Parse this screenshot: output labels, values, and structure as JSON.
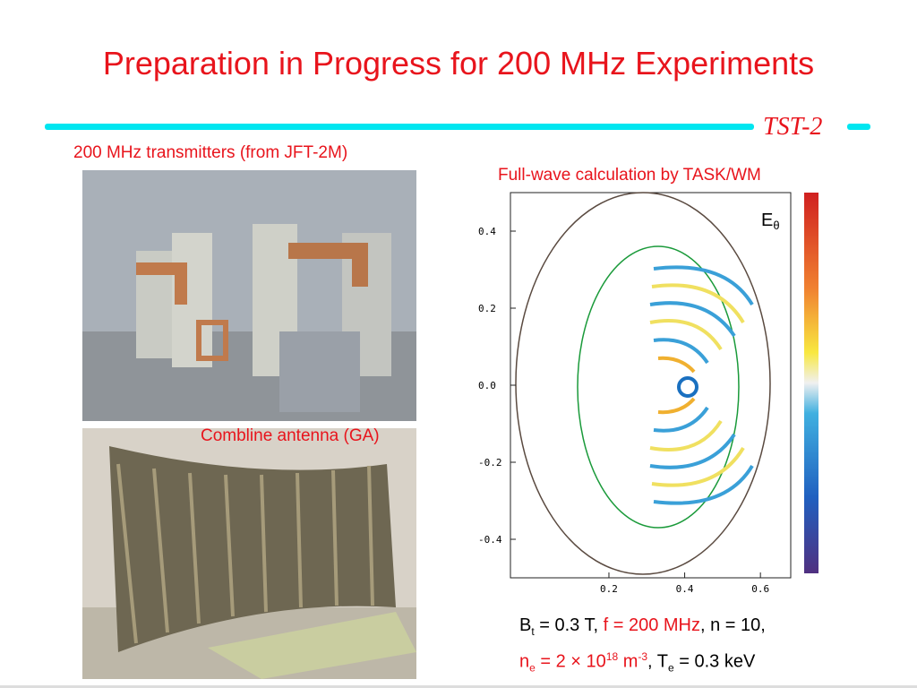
{
  "slide": {
    "title": "Preparation in Progress for 200 MHz Experiments",
    "logo": "TST-2",
    "left": {
      "caption_top": "200 MHz transmitters (from JFT-2M)",
      "caption_bottom": "Combline antenna (GA)"
    },
    "plot": {
      "caption": "Full-wave calculation by TASK/WM",
      "field_label": "E",
      "field_sub": "θ",
      "xlim": [
        -0.06,
        0.68
      ],
      "ylim": [
        -0.5,
        0.5
      ],
      "xticks": [
        0.2,
        0.4,
        0.6
      ],
      "yticks": [
        0.4,
        0.2,
        {
          "value": 0,
          "label": "0.0"
        },
        -0.2,
        -0.4
      ]
    },
    "params": {
      "line1": [
        "B",
        "t",
        " = 0.3 T, ",
        "f = 200 MHz",
        ", n = 10,"
      ],
      "line2": [
        "n",
        "e",
        " = 2 × 10",
        "18",
        " m",
        "-3",
        ", T",
        "e",
        " = 0.3 keV"
      ]
    }
  }
}
